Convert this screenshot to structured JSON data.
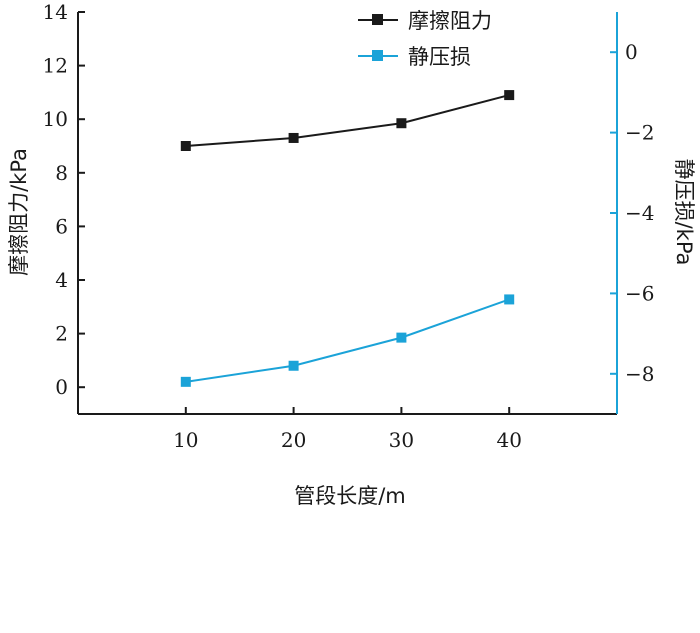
{
  "chart_data": {
    "type": "line",
    "x": [
      10,
      20,
      30,
      40
    ],
    "xlabel": "管段长度/m",
    "ylabel_left": "摩擦阻力/kPa",
    "ylabel_right": "静压损/kPa",
    "xlim": [
      0,
      50
    ],
    "ylim_left": [
      -1,
      14
    ],
    "ylim_right": [
      -9,
      1
    ],
    "xticks": [
      "10",
      "20",
      "30",
      "40"
    ],
    "yticks_left": [
      "0",
      "2",
      "4",
      "6",
      "8",
      "10",
      "12",
      "14"
    ],
    "yticks_right": [
      "0",
      "−2",
      "−4",
      "−6",
      "−8"
    ],
    "grid": false,
    "legend_position": "top-right",
    "series": [
      {
        "name": "摩擦阻力",
        "axis": "left",
        "color": "#1a1a1a",
        "marker": "square",
        "values": [
          9.0,
          9.3,
          9.85,
          10.9
        ]
      },
      {
        "name": "静压损",
        "axis": "right",
        "color": "#1ba3d8",
        "marker": "square",
        "values": [
          -8.2,
          -7.8,
          -7.1,
          -6.15
        ]
      }
    ]
  }
}
